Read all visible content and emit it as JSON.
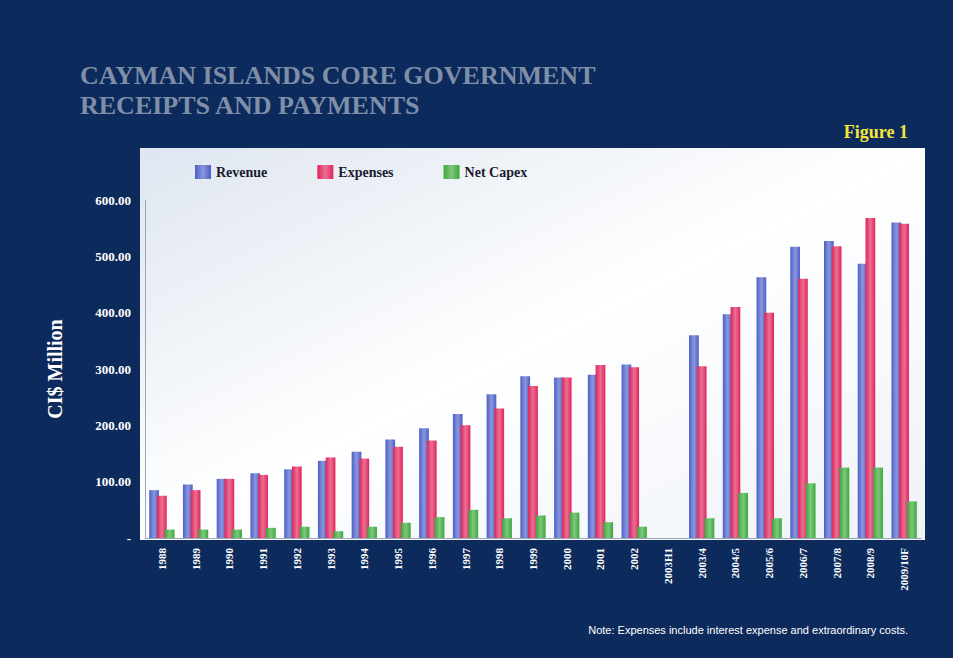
{
  "chart_data": {
    "type": "bar",
    "title": "CAYMAN ISLANDS CORE GOVERNMENT RECEIPTS AND PAYMENTS",
    "figure_label": "Figure 1",
    "y_label": "CI$ Million",
    "note": "Note: Expenses include interest expense and extraordinary costs.",
    "categories": [
      "1988",
      "1989",
      "1990",
      "1991",
      "1992",
      "1993",
      "1994",
      "1995",
      "1996",
      "1997",
      "1998",
      "1999",
      "2000",
      "2001",
      "2002",
      "2003H1",
      "2003/4",
      "2004/5",
      "2005/6",
      "2006/7",
      "2007/8",
      "2008/9",
      "2009/10F"
    ],
    "series": [
      {
        "name": "Revenue",
        "color": "#4b5fc8",
        "values": [
          85,
          95,
          105,
          115,
          122,
          137,
          153,
          175,
          195,
          220,
          255,
          287,
          285,
          290,
          308,
          null,
          360,
          397,
          463,
          517,
          527,
          487,
          560
        ]
      },
      {
        "name": "Expenses",
        "color": "#e0245a",
        "values": [
          75,
          85,
          105,
          112,
          127,
          143,
          141,
          162,
          173,
          200,
          230,
          270,
          285,
          307,
          303,
          null,
          305,
          410,
          400,
          460,
          518,
          568,
          558
        ]
      },
      {
        "name": "Net Capex",
        "color": "#3aa83a",
        "values": [
          15,
          15,
          15,
          18,
          20,
          12,
          20,
          27,
          37,
          50,
          35,
          40,
          45,
          28,
          20,
          null,
          35,
          80,
          35,
          97,
          125,
          125,
          65
        ]
      }
    ],
    "ylim": [
      0,
      600
    ],
    "yticks": [
      {
        "value": 0,
        "label": "-"
      },
      {
        "value": 100,
        "label": "100.00"
      },
      {
        "value": 200,
        "label": "200.00"
      },
      {
        "value": 300,
        "label": "300.00"
      },
      {
        "value": 400,
        "label": "400.00"
      },
      {
        "value": 500,
        "label": "500.00"
      },
      {
        "value": 600,
        "label": "600.00"
      }
    ],
    "grid": false,
    "legend": "top-left"
  }
}
